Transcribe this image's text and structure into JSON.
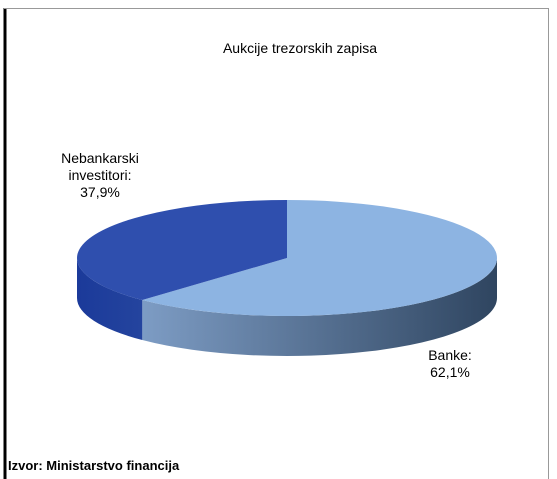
{
  "chart_data": {
    "type": "pie",
    "title": "Aukcije trezorskih zapisa",
    "categories": [
      "Banke:",
      "Nebankarski investitori:"
    ],
    "values": [
      62.1,
      37.9
    ],
    "value_labels": [
      "62,1%",
      "37,9%"
    ],
    "colors": [
      "#8db4e2",
      "#2f4fae"
    ],
    "source": "Izvor: Ministarstvo financija"
  }
}
